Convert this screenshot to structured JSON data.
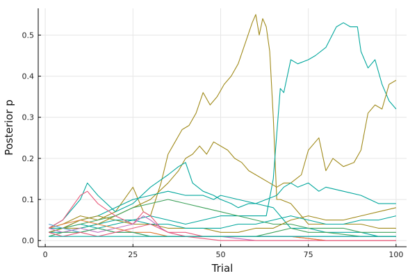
{
  "chart_data": {
    "type": "line",
    "title": "",
    "xlabel": "Trial",
    "ylabel": "Posterior p",
    "xlim": [
      -2,
      103
    ],
    "ylim": [
      -0.015,
      0.565
    ],
    "xticks": [
      0,
      25,
      50,
      75,
      100
    ],
    "xtick_labels": [
      "0",
      "25",
      "50",
      "75",
      "100"
    ],
    "yticks": [
      0.0,
      0.1,
      0.2,
      0.3,
      0.4,
      0.5
    ],
    "ytick_labels": [
      "0.0",
      "0.1",
      "0.2",
      "0.3",
      "0.4",
      "0.5"
    ],
    "grid": true,
    "legend": "none",
    "colors": [
      "#a08a1a",
      "#00a69c",
      "#3da15a",
      "#e8597a",
      "#e07b33",
      "#4aa0d8",
      "#c06fc0"
    ],
    "series": [
      {
        "color": "#a08a1a",
        "x": [
          1,
          5,
          10,
          15,
          20,
          25,
          28,
          30,
          33,
          35,
          37,
          39,
          41,
          43,
          45,
          47,
          49,
          51,
          53,
          55,
          57,
          59,
          60,
          61,
          62,
          63,
          64,
          65,
          66,
          67,
          70,
          75,
          80,
          85,
          90,
          95,
          100
        ],
        "y": [
          0.03,
          0.04,
          0.06,
          0.05,
          0.07,
          0.13,
          0.07,
          0.06,
          0.14,
          0.21,
          0.24,
          0.27,
          0.28,
          0.31,
          0.36,
          0.33,
          0.35,
          0.38,
          0.4,
          0.43,
          0.48,
          0.53,
          0.55,
          0.5,
          0.54,
          0.52,
          0.46,
          0.3,
          0.1,
          0.1,
          0.09,
          0.04,
          0.04,
          0.04,
          0.04,
          0.03,
          0.03
        ]
      },
      {
        "color": "#00a69c",
        "x": [
          1,
          5,
          10,
          15,
          20,
          25,
          30,
          35,
          40,
          45,
          50,
          55,
          60,
          63,
          65,
          67,
          68,
          70,
          72,
          75,
          77,
          80,
          83,
          85,
          87,
          89,
          90,
          92,
          94,
          96,
          98,
          100
        ],
        "y": [
          0.03,
          0.03,
          0.04,
          0.03,
          0.04,
          0.05,
          0.06,
          0.05,
          0.04,
          0.05,
          0.06,
          0.06,
          0.06,
          0.06,
          0.15,
          0.37,
          0.36,
          0.44,
          0.43,
          0.44,
          0.45,
          0.47,
          0.52,
          0.53,
          0.52,
          0.52,
          0.46,
          0.42,
          0.44,
          0.38,
          0.34,
          0.32
        ]
      },
      {
        "color": "#a08a1a",
        "x": [
          1,
          5,
          10,
          15,
          20,
          25,
          30,
          35,
          38,
          40,
          42,
          44,
          46,
          48,
          50,
          52,
          54,
          56,
          58,
          60,
          62,
          64,
          66,
          68,
          70,
          73,
          75,
          78,
          80,
          82,
          85,
          88,
          90,
          92,
          94,
          96,
          98,
          100
        ],
        "y": [
          0.02,
          0.03,
          0.03,
          0.04,
          0.06,
          0.08,
          0.1,
          0.14,
          0.17,
          0.2,
          0.21,
          0.23,
          0.21,
          0.24,
          0.23,
          0.22,
          0.2,
          0.19,
          0.17,
          0.16,
          0.15,
          0.14,
          0.13,
          0.14,
          0.14,
          0.16,
          0.22,
          0.25,
          0.17,
          0.2,
          0.18,
          0.19,
          0.22,
          0.31,
          0.33,
          0.32,
          0.38,
          0.39
        ]
      },
      {
        "color": "#00a69c",
        "x": [
          1,
          5,
          10,
          12,
          15,
          20,
          25,
          30,
          35,
          38,
          40,
          42,
          45,
          48,
          50,
          53,
          55,
          58,
          60,
          63,
          66,
          68,
          70,
          72,
          75,
          78,
          80,
          85,
          90,
          95,
          100
        ],
        "y": [
          0.03,
          0.05,
          0.1,
          0.14,
          0.11,
          0.07,
          0.09,
          0.13,
          0.16,
          0.18,
          0.19,
          0.14,
          0.12,
          0.11,
          0.1,
          0.09,
          0.08,
          0.09,
          0.09,
          0.1,
          0.11,
          0.13,
          0.14,
          0.13,
          0.14,
          0.12,
          0.13,
          0.12,
          0.11,
          0.09,
          0.09
        ]
      },
      {
        "color": "#00a69c",
        "x": [
          1,
          5,
          10,
          15,
          20,
          25,
          30,
          35,
          40,
          45,
          48,
          50,
          55,
          60,
          65,
          68,
          70,
          75,
          80,
          85,
          90,
          95,
          100
        ],
        "y": [
          0.02,
          0.03,
          0.05,
          0.06,
          0.08,
          0.1,
          0.11,
          0.12,
          0.11,
          0.11,
          0.1,
          0.11,
          0.1,
          0.09,
          0.08,
          0.05,
          0.03,
          0.03,
          0.02,
          0.02,
          0.02,
          0.01,
          0.01
        ]
      },
      {
        "color": "#3da15a",
        "x": [
          1,
          5,
          10,
          15,
          20,
          25,
          30,
          35,
          40,
          45,
          50,
          55,
          60,
          65,
          70,
          75,
          80,
          85,
          90,
          95,
          100
        ],
        "y": [
          0.02,
          0.03,
          0.04,
          0.05,
          0.06,
          0.08,
          0.09,
          0.1,
          0.09,
          0.08,
          0.07,
          0.06,
          0.05,
          0.04,
          0.04,
          0.03,
          0.03,
          0.03,
          0.02,
          0.02,
          0.02
        ]
      },
      {
        "color": "#a08a1a",
        "x": [
          1,
          5,
          10,
          15,
          20,
          25,
          30,
          35,
          40,
          45,
          50,
          55,
          60,
          65,
          70,
          75,
          80,
          85,
          90,
          95,
          100
        ],
        "y": [
          0.02,
          0.03,
          0.05,
          0.06,
          0.05,
          0.04,
          0.04,
          0.03,
          0.03,
          0.03,
          0.02,
          0.02,
          0.03,
          0.03,
          0.05,
          0.06,
          0.05,
          0.05,
          0.06,
          0.07,
          0.08
        ]
      },
      {
        "color": "#00a69c",
        "x": [
          1,
          5,
          10,
          15,
          20,
          25,
          30,
          35,
          40,
          45,
          50,
          55,
          60,
          65,
          70,
          75,
          80,
          85,
          90,
          95,
          100
        ],
        "y": [
          0.02,
          0.02,
          0.03,
          0.04,
          0.05,
          0.05,
          0.04,
          0.04,
          0.03,
          0.03,
          0.03,
          0.04,
          0.04,
          0.05,
          0.06,
          0.05,
          0.04,
          0.04,
          0.05,
          0.05,
          0.06
        ]
      },
      {
        "color": "#e8597a",
        "x": [
          1,
          5,
          10,
          12,
          15,
          20,
          25,
          28,
          30,
          33,
          35,
          40,
          45,
          50,
          55,
          60,
          70,
          80,
          90,
          100
        ],
        "y": [
          0.03,
          0.05,
          0.11,
          0.12,
          0.09,
          0.06,
          0.04,
          0.07,
          0.06,
          0.03,
          0.02,
          0.02,
          0.01,
          0.01,
          0.01,
          0.01,
          0.01,
          0.0,
          0.0,
          0.0
        ]
      },
      {
        "color": "#e07b33",
        "x": [
          1,
          5,
          10,
          15,
          20,
          25,
          30,
          35,
          40,
          45,
          50,
          60,
          70,
          80,
          90,
          100
        ],
        "y": [
          0.03,
          0.04,
          0.05,
          0.04,
          0.03,
          0.02,
          0.02,
          0.01,
          0.01,
          0.01,
          0.01,
          0.01,
          0.01,
          0.0,
          0.0,
          0.0
        ]
      },
      {
        "color": "#4aa0d8",
        "x": [
          1,
          5,
          10,
          15,
          20,
          25,
          30,
          35,
          40,
          50,
          60,
          70,
          80,
          90,
          100
        ],
        "y": [
          0.04,
          0.03,
          0.02,
          0.03,
          0.02,
          0.02,
          0.01,
          0.01,
          0.01,
          0.01,
          0.01,
          0.01,
          0.01,
          0.01,
          0.01
        ]
      },
      {
        "color": "#c06fc0",
        "x": [
          1,
          5,
          10,
          15,
          20,
          25,
          28,
          30,
          33,
          35,
          40,
          50,
          60,
          70,
          80,
          90,
          100
        ],
        "y": [
          0.03,
          0.02,
          0.03,
          0.02,
          0.03,
          0.04,
          0.06,
          0.05,
          0.03,
          0.02,
          0.01,
          0.01,
          0.0,
          0.0,
          0.0,
          0.0,
          0.0
        ]
      },
      {
        "color": "#3da15a",
        "x": [
          1,
          5,
          10,
          15,
          20,
          25,
          30,
          40,
          50,
          60,
          65,
          70,
          75,
          80,
          90,
          100
        ],
        "y": [
          0.01,
          0.02,
          0.02,
          0.03,
          0.02,
          0.02,
          0.01,
          0.01,
          0.01,
          0.01,
          0.02,
          0.03,
          0.02,
          0.02,
          0.01,
          0.01
        ]
      },
      {
        "color": "#e8597a",
        "x": [
          1,
          5,
          10,
          15,
          20,
          25,
          30,
          35,
          40,
          50,
          60,
          70,
          80,
          90,
          100
        ],
        "y": [
          0.02,
          0.01,
          0.02,
          0.01,
          0.02,
          0.03,
          0.04,
          0.02,
          0.01,
          0.0,
          0.0,
          0.0,
          0.0,
          0.0,
          0.0
        ]
      },
      {
        "color": "#00a69c",
        "x": [
          1,
          10,
          20,
          30,
          40,
          50,
          60,
          70,
          80,
          90,
          100
        ],
        "y": [
          0.01,
          0.01,
          0.01,
          0.01,
          0.01,
          0.01,
          0.01,
          0.01,
          0.01,
          0.01,
          0.01
        ]
      }
    ]
  }
}
